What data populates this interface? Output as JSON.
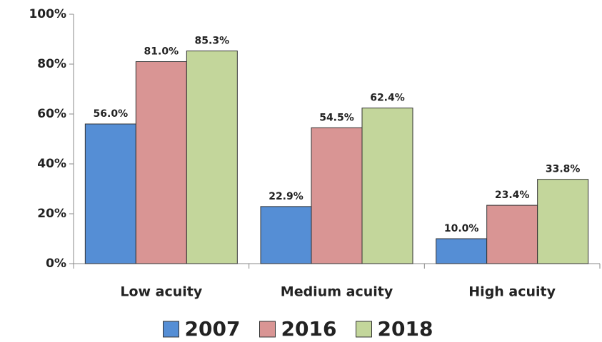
{
  "chart_data": {
    "type": "bar",
    "categories": [
      "Low acuity",
      "Medium acuity",
      "High acuity"
    ],
    "series": [
      {
        "name": "2007",
        "color": "#558ed5",
        "values": [
          56.0,
          22.9,
          10.0
        ],
        "value_labels": [
          "56.0%",
          "22.9%",
          "10.0%"
        ]
      },
      {
        "name": "2016",
        "color": "#d99594",
        "values": [
          81.0,
          54.5,
          23.4
        ],
        "value_labels": [
          "81.0%",
          "54.5%",
          "23.4%"
        ]
      },
      {
        "name": "2018",
        "color": "#c3d69b",
        "values": [
          85.3,
          62.4,
          33.8
        ],
        "value_labels": [
          "85.3%",
          "62.4%",
          "33.8%"
        ]
      }
    ],
    "ylim": [
      0,
      100
    ],
    "yticks": [
      {
        "value": 0,
        "label": "0%"
      },
      {
        "value": 20,
        "label": "20%"
      },
      {
        "value": 40,
        "label": "40%"
      },
      {
        "value": 60,
        "label": "60%"
      },
      {
        "value": 80,
        "label": "80%"
      },
      {
        "value": 100,
        "label": "100%"
      }
    ],
    "grid": false,
    "legend": "bottom"
  }
}
